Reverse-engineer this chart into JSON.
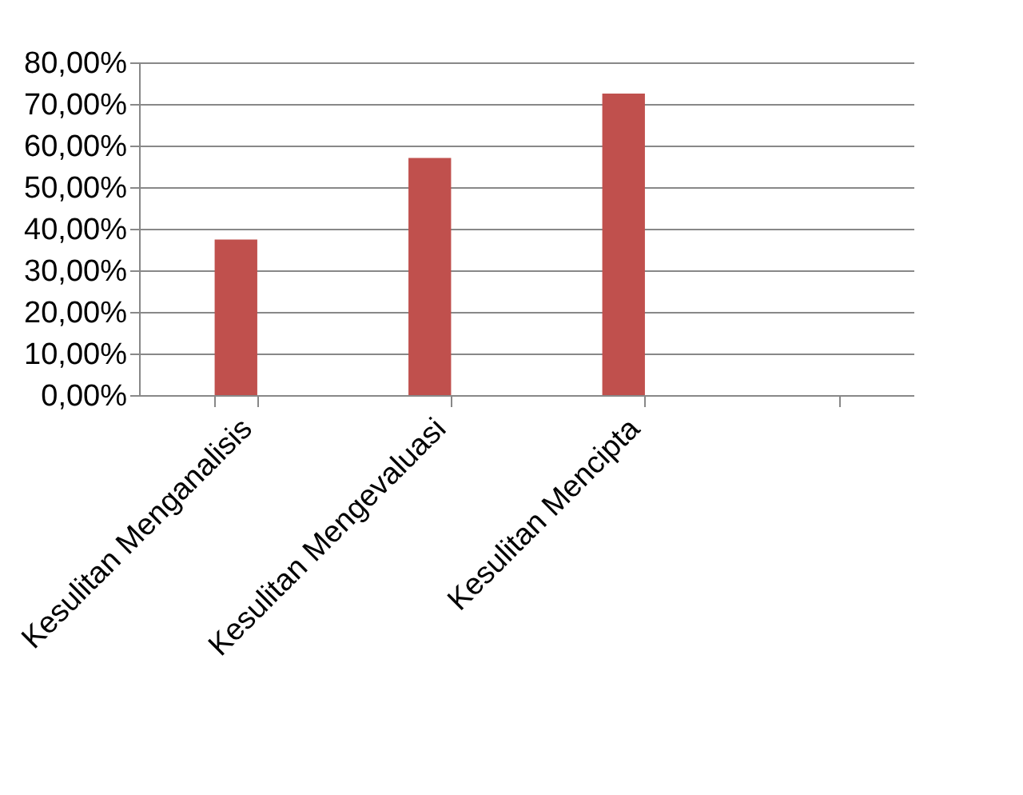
{
  "chart_data": {
    "type": "bar",
    "categories": [
      "Kesulitan Menganalisis",
      "Kesulitan Mengevaluasi",
      "Kesulitan Mencipta",
      null
    ],
    "values": [
      37.4,
      57.0,
      72.5,
      null
    ],
    "color": "#c0504d",
    "ylim": [
      0,
      80
    ],
    "yticks": [
      {
        "value": 0,
        "label": "0,00%"
      },
      {
        "value": 10,
        "label": "10,00%"
      },
      {
        "value": 20,
        "label": "20,00%"
      },
      {
        "value": 30,
        "label": "30,00%"
      },
      {
        "value": 40,
        "label": "40,00%"
      },
      {
        "value": 50,
        "label": "50,00%"
      },
      {
        "value": 60,
        "label": "60,00%"
      },
      {
        "value": 70,
        "label": "70,00%"
      },
      {
        "value": 80,
        "label": "80,00%"
      }
    ],
    "grid": "y"
  }
}
